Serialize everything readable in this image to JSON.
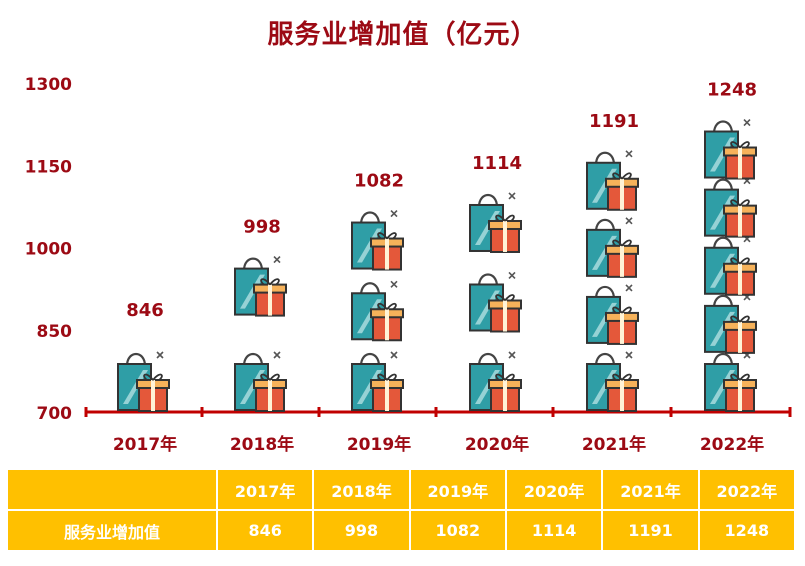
{
  "title": "服务业增加值（亿元）",
  "chart_data": {
    "type": "bar",
    "title": "服务业增加值（亿元）",
    "categories": [
      "2017年",
      "2018年",
      "2019年",
      "2020年",
      "2021年",
      "2022年"
    ],
    "values": [
      846,
      998,
      1082,
      1114,
      1191,
      1248
    ],
    "yticks": [
      700,
      850,
      1000,
      1150,
      1300
    ],
    "ylim": [
      700,
      1300
    ],
    "icon_counts": [
      1,
      2,
      3,
      3,
      4,
      5
    ],
    "grid": false,
    "colors": {
      "title": "#9c0a14",
      "labels": "#9c0a14",
      "axis": "#c00000",
      "bag": "#2f9ea6",
      "bag_light": "#a8dadd",
      "gift": "#e4583a",
      "gift_top": "#f6b25a",
      "table_bg": "#ffc000"
    }
  },
  "table": {
    "row_label": "服务业增加值",
    "years": [
      "2017年",
      "2018年",
      "2019年",
      "2020年",
      "2021年",
      "2022年"
    ],
    "values": [
      "846",
      "998",
      "1082",
      "1114",
      "1191",
      "1248"
    ]
  }
}
